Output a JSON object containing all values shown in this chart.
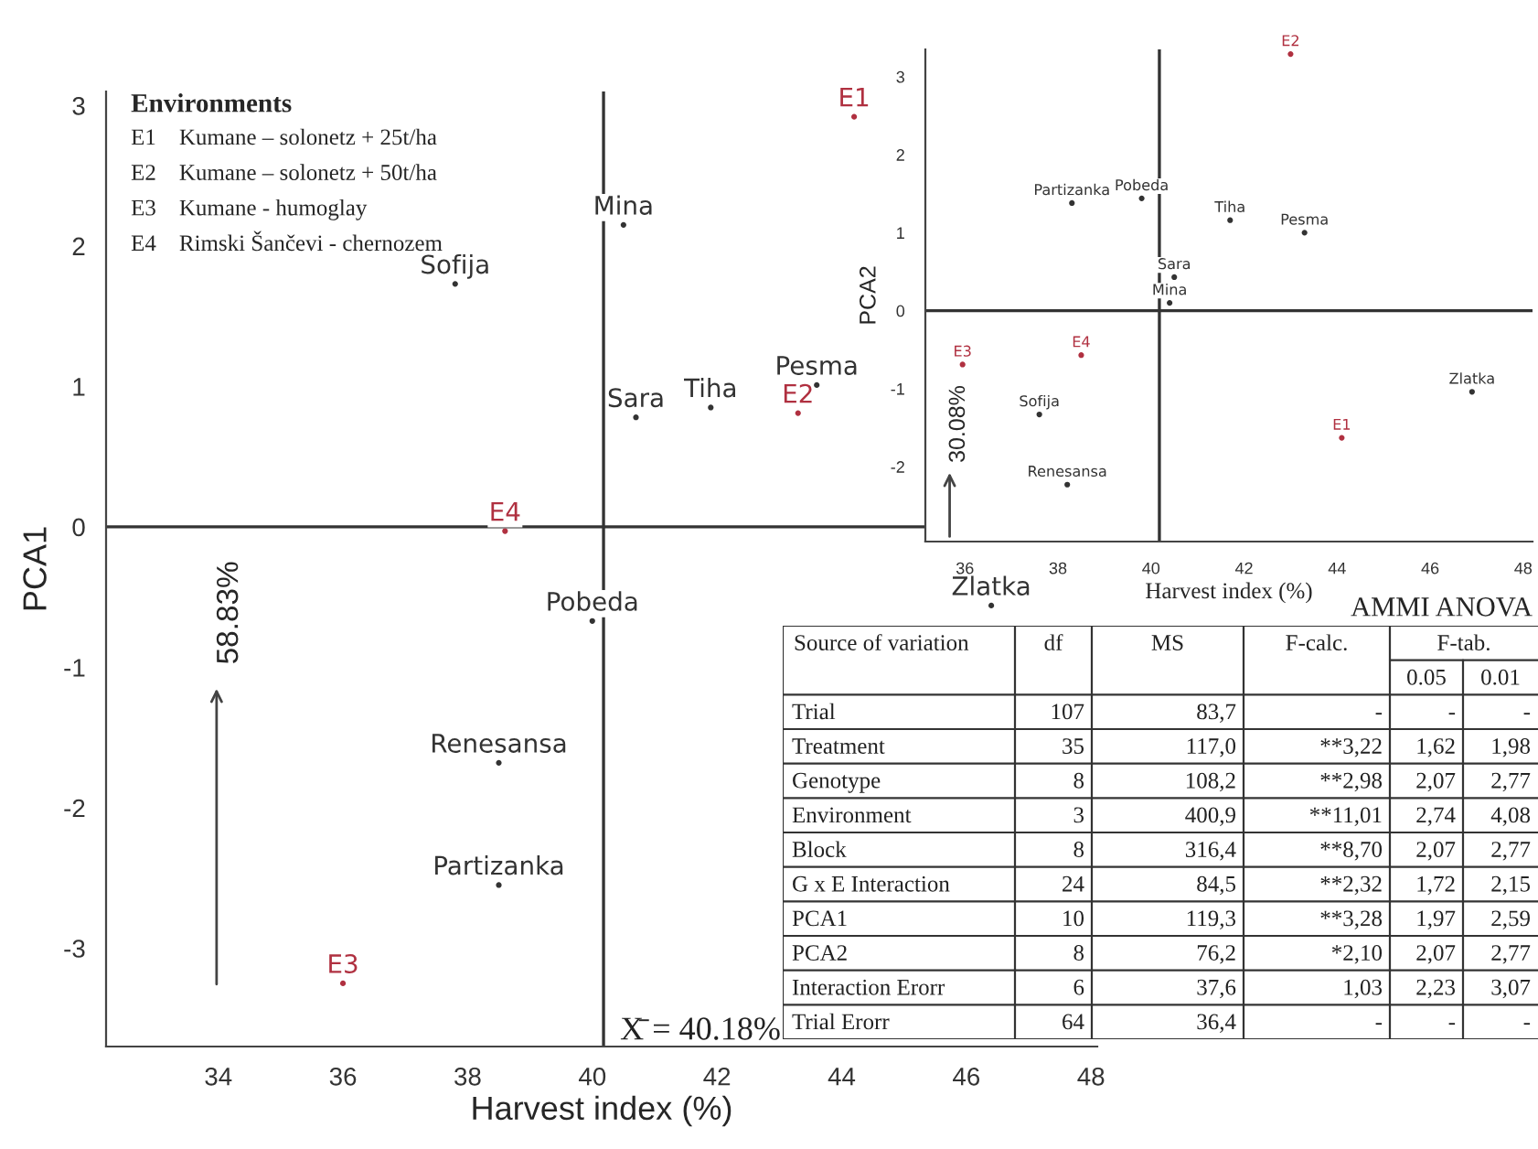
{
  "chart_data": [
    {
      "type": "scatter",
      "xlabel": "Harvest index (%)",
      "ylabel": "PCA1",
      "xlim": [
        32.2,
        48.1
      ],
      "ylim": [
        -3.7,
        3.1
      ],
      "xticks": [
        34,
        36,
        38,
        40,
        42,
        44,
        46,
        48
      ],
      "yticks": [
        -3,
        -2,
        -1,
        0,
        1,
        2,
        3
      ],
      "grid": false,
      "marker": "circle",
      "series": [
        {
          "color": "#333333",
          "x": [
            40.5,
            37.8,
            43.6,
            40.7,
            41.9,
            40.0,
            38.5,
            38.5,
            46.4
          ],
          "values": [
            2.15,
            1.73,
            1.01,
            0.78,
            0.85,
            -0.67,
            -1.68,
            -2.55,
            -0.56
          ],
          "value_labels": [
            "Mina",
            "Sofija",
            "Pesma",
            "Sara",
            "Tiha",
            "Pobeda",
            "Renesansa",
            "Partizanka",
            "Zlatka"
          ]
        },
        {
          "color": "#b03040",
          "x": [
            44.2,
            43.3,
            36.0,
            38.6
          ],
          "values": [
            2.92,
            0.81,
            -3.25,
            -0.03
          ],
          "value_labels": [
            "E1",
            "E2",
            "E3",
            "E4"
          ]
        }
      ],
      "ref_lines": [
        {
          "axis": "x",
          "value": 40.18,
          "label": "X̄ = 40.18%"
        },
        {
          "axis": "y",
          "value": 0,
          "label": null
        }
      ],
      "annotations": [
        "Environments",
        "E1    Kumane – solonetz + 25t/ha",
        "E2    Kumane – solonetz + 50t/ha",
        "E3    Kumane - humoglay",
        "E4    Rimski Šančevi - chernozem",
        "58.83%"
      ]
    },
    {
      "type": "scatter",
      "xlabel": "Harvest index (%)",
      "ylabel": "PCA2",
      "xlim": [
        35.15,
        48.2
      ],
      "ylim": [
        -2.96,
        3.35
      ],
      "xticks": [
        36,
        38,
        40,
        42,
        44,
        46,
        48
      ],
      "yticks": [
        -2,
        -1,
        0,
        1,
        2,
        3
      ],
      "grid": false,
      "marker": "circle",
      "series": [
        {
          "color": "#333333",
          "x": [
            38.3,
            39.8,
            41.7,
            43.3,
            40.5,
            40.4,
            46.9,
            37.6,
            38.2
          ],
          "values": [
            1.38,
            1.44,
            1.16,
            1.0,
            0.43,
            0.1,
            -1.04,
            -1.33,
            -2.23
          ],
          "value_labels": [
            "Partizanka",
            "Pobeda",
            "Tiha",
            "Pesma",
            "Sara",
            "Mina",
            "Zlatka",
            "Sofija",
            "Renesansa"
          ]
        },
        {
          "color": "#b03040",
          "x": [
            43.0,
            35.95,
            38.5,
            44.1
          ],
          "values": [
            3.29,
            -0.69,
            -0.57,
            -1.63
          ],
          "value_labels": [
            "E2",
            "E3",
            "E4",
            "E1"
          ]
        }
      ],
      "ref_lines": [
        {
          "axis": "x",
          "value": 40.18,
          "label": null
        },
        {
          "axis": "y",
          "value": 0,
          "label": null
        }
      ],
      "annotations": [
        "30.08%"
      ]
    },
    {
      "type": "other",
      "title": "AMMI ANOVA",
      "ylabel": "Source of variation",
      "xlabel": "F-tab.",
      "categories": [
        "df",
        "MS",
        "F-calc.",
        "0.05",
        "0.01"
      ],
      "y_categories": [
        "Trial",
        "Treatment",
        "Genotype",
        "Environment",
        "Block",
        "G x E Interaction",
        "PCA1",
        "PCA2",
        "Interaction Erorr",
        "Trial Erorr"
      ],
      "cell_labels": [
        [
          "107",
          "83,7",
          "-",
          "-",
          "-"
        ],
        [
          "35",
          "117,0",
          "**3,22",
          "1,62",
          "1,98"
        ],
        [
          "8",
          "108,2",
          "**2,98",
          "2,07",
          "2,77"
        ],
        [
          "3",
          "400,9",
          "**11,01",
          "2,74",
          "4,08"
        ],
        [
          "8",
          "316,4",
          "**8,70",
          "2,07",
          "2,77"
        ],
        [
          "24",
          "84,5",
          "**2,32",
          "1,72",
          "2,15"
        ],
        [
          "10",
          "119,3",
          "**3,28",
          "1,97",
          "2,59"
        ],
        [
          "8",
          "76,2",
          "*2,10",
          "2,07",
          "2,77"
        ],
        [
          "6",
          "37,6",
          "1,03",
          "2,23",
          "3,07"
        ],
        [
          "64",
          "36,4",
          "-",
          "-",
          "-"
        ]
      ]
    }
  ]
}
